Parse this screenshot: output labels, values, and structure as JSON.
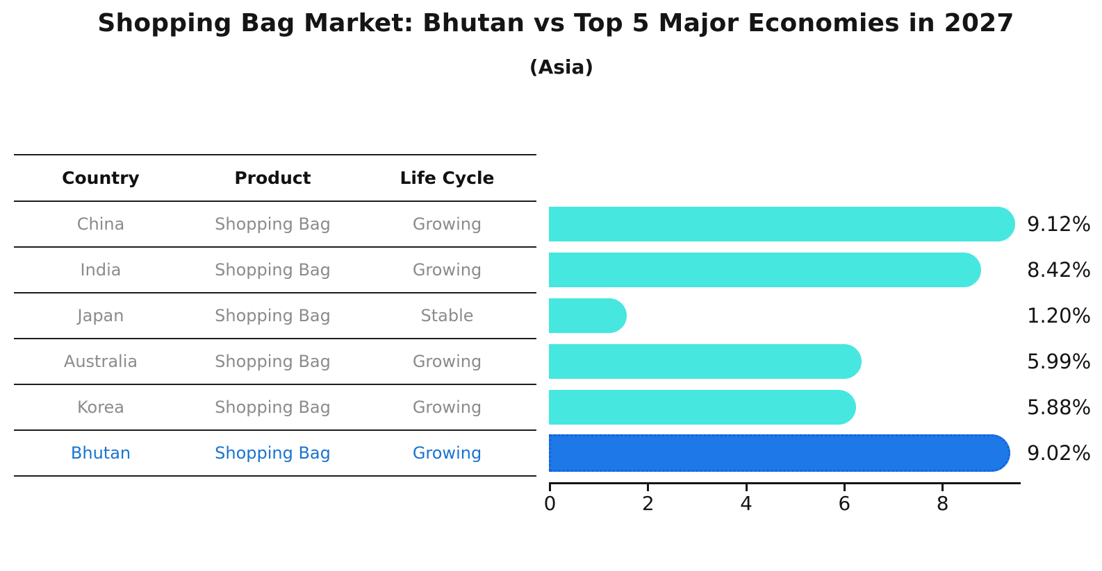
{
  "title": "Shopping Bag Market: Bhutan vs Top 5 Major Economies in 2027",
  "subtitle": "(Asia)",
  "table": {
    "headers": [
      "Country",
      "Product",
      "Life Cycle"
    ],
    "rows": [
      {
        "country": "China",
        "product": "Shopping Bag",
        "life_cycle": "Growing",
        "highlight": false
      },
      {
        "country": "India",
        "product": "Shopping Bag",
        "life_cycle": "Growing",
        "highlight": false
      },
      {
        "country": "Japan",
        "product": "Shopping Bag",
        "life_cycle": "Stable",
        "highlight": false
      },
      {
        "country": "Australia",
        "product": "Shopping Bag",
        "life_cycle": "Growing",
        "highlight": false
      },
      {
        "country": "Korea",
        "product": "Shopping Bag",
        "life_cycle": "Growing",
        "highlight": false
      },
      {
        "country": "Bhutan",
        "product": "Shopping Bag",
        "life_cycle": "Growing",
        "highlight": true
      }
    ]
  },
  "chart_data": {
    "type": "bar",
    "orientation": "horizontal",
    "title": "Shopping Bag Market: Bhutan vs Top 5 Major Economies in 2027",
    "subtitle": "(Asia)",
    "categories": [
      "China",
      "India",
      "Japan",
      "Australia",
      "Korea",
      "Bhutan"
    ],
    "values": [
      9.12,
      8.42,
      1.2,
      5.99,
      5.88,
      9.02
    ],
    "value_labels": [
      "9.12%",
      "8.42%",
      "1.20%",
      "5.99%",
      "5.88%",
      "9.02%"
    ],
    "unit": "%",
    "xticks": [
      0,
      2,
      4,
      6,
      8
    ],
    "xtick_labels": [
      "0",
      "2",
      "4",
      "6",
      "8"
    ],
    "xlim": [
      0,
      9.58
    ],
    "grid": false,
    "legend": false,
    "highlight_index": 5,
    "colors": {
      "bar": "#46E7DF",
      "highlight_bar": "#1E78E8",
      "highlight_border": "#1563DA",
      "highlight_text": "#1A73D1",
      "row_text": "#8B8B8B",
      "text": "#141414"
    }
  }
}
